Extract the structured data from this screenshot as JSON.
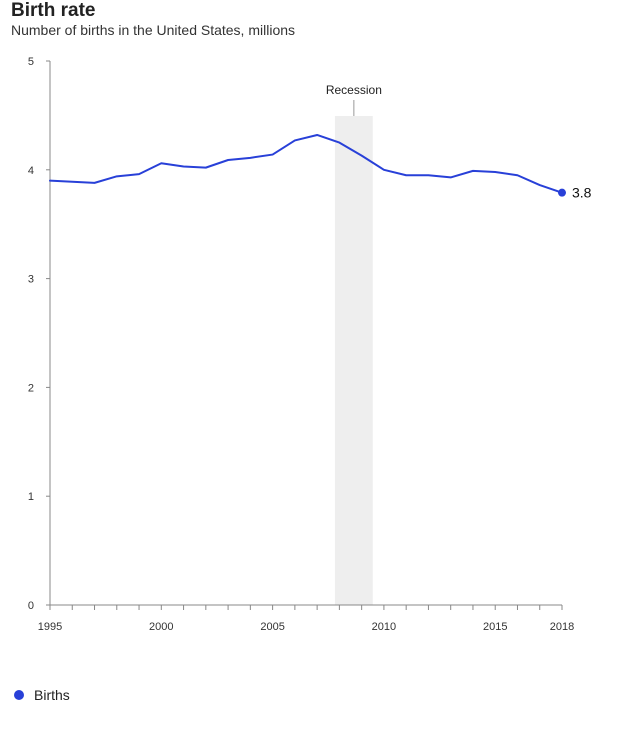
{
  "chart_data": {
    "type": "line",
    "title": "Birth rate",
    "subtitle": "Number of births in the United States, millions",
    "xlabel": "",
    "ylabel": "",
    "xlim": [
      1995,
      2018
    ],
    "ylim": [
      0,
      5
    ],
    "x_ticks": [
      1995,
      2000,
      2005,
      2010,
      2015,
      2018
    ],
    "y_ticks": [
      0,
      1,
      2,
      3,
      4,
      5
    ],
    "grid": false,
    "legend_position": "bottom-left",
    "series": [
      {
        "name": "Births",
        "color": "#2840d8",
        "x": [
          1995,
          1996,
          1997,
          1998,
          1999,
          2000,
          2001,
          2002,
          2003,
          2004,
          2005,
          2006,
          2007,
          2008,
          2009,
          2010,
          2011,
          2012,
          2013,
          2014,
          2015,
          2016,
          2017,
          2018
        ],
        "values": [
          3.9,
          3.89,
          3.88,
          3.94,
          3.96,
          4.06,
          4.03,
          4.02,
          4.09,
          4.11,
          4.14,
          4.27,
          4.32,
          4.25,
          4.13,
          4.0,
          3.95,
          3.95,
          3.93,
          3.99,
          3.98,
          3.95,
          3.86,
          3.79
        ]
      }
    ],
    "end_value_label": "3.8",
    "annotations": [
      {
        "type": "shaded-region",
        "label": "Recession",
        "x_start": 2007.8,
        "x_end": 2009.5,
        "color": "#eeeeee"
      }
    ]
  }
}
